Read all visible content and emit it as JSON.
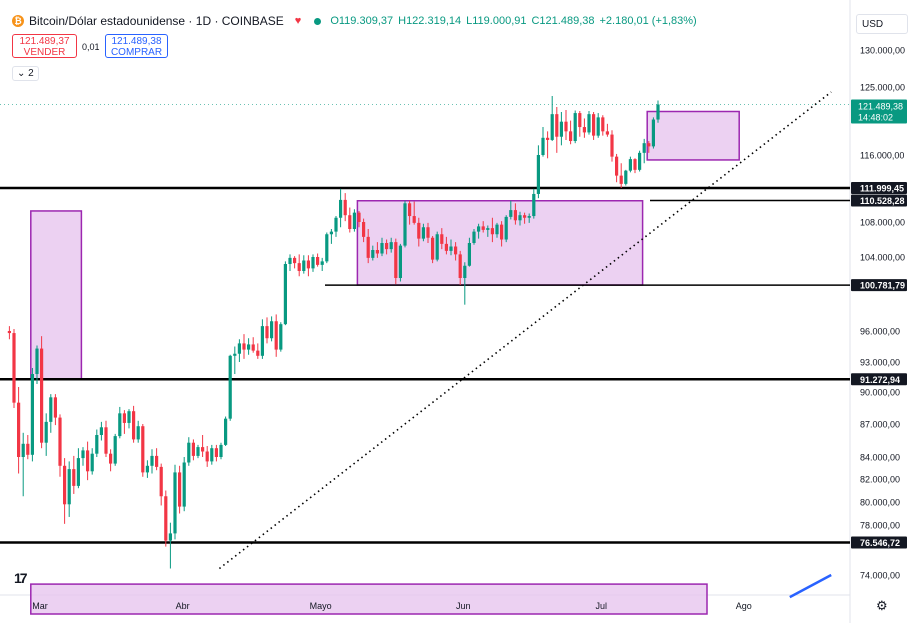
{
  "header": {
    "symbol": "Bitcoin/Dólar estadounidense · 1D · COINBASE",
    "open": "O119.309,37",
    "high": "H122.319,14",
    "low": "L119.000,91",
    "close": "C121.489,38",
    "change": "+2.180,01 (+1,83%)",
    "icon": "bitcoin-icon"
  },
  "trade": {
    "sell_price": "121.489,37",
    "sell_label": "VENDER",
    "spread": "0,01",
    "buy_price": "121.489,38",
    "buy_label": "COMPRAR"
  },
  "indicators_count": "⌄ 2",
  "currency": "USD",
  "colors": {
    "up": "#089981",
    "down": "#f23645",
    "zone_fill": "#e7c6ef",
    "zone_border": "#9c27b0",
    "trend_blue": "#2962ff"
  },
  "chart_data": {
    "type": "candlestick",
    "y_ticks": [
      "130.000,00",
      "125.000,00",
      "120.000,00",
      "116.000,00",
      "112.000,00",
      "108.000,00",
      "104.000,00",
      "100.000,00",
      "96.000,00",
      "93.000,00",
      "90.000,00",
      "87.000,00",
      "84.000,00",
      "82.000,00",
      "80.000,00",
      "78.000,00",
      "76.000,00",
      "74.000,00"
    ],
    "y_tick_values": [
      130000,
      125000,
      120000,
      116000,
      112000,
      108000,
      104000,
      100000,
      96000,
      93000,
      90000,
      87000,
      84000,
      82000,
      80000,
      78000,
      76000,
      74000
    ],
    "hidden_ticks": [
      "120.000,00",
      "112.000,00",
      "100.000,00",
      "76.000,00"
    ],
    "x_labels": [
      "Mar",
      "Abr",
      "Mayo",
      "Jun",
      "Jul",
      "Ago"
    ],
    "x_label_dates": [
      "2025-03-01",
      "2025-04-01",
      "2025-05-01",
      "2025-06-01",
      "2025-07-01",
      "2025-08-01"
    ],
    "horizontal_levels": [
      {
        "value": 111999.45,
        "label": "111.999,45"
      },
      {
        "value": 110528.28,
        "label": "110.528,28"
      },
      {
        "value": 100781.79,
        "label": "100.781,79"
      },
      {
        "value": 91272.94,
        "label": "91.272,94"
      },
      {
        "value": 76546.72,
        "label": "76.546,72"
      }
    ],
    "current_price": {
      "label": "121.489,38",
      "countdown": "14:48:02",
      "value": 121489.38
    },
    "zones": [
      {
        "start": "2025-02-27",
        "end": "2025-03-10",
        "top": 109300,
        "bottom": 91300
      },
      {
        "start": "2025-05-09",
        "end": "2025-07-10",
        "top": 110500,
        "bottom": 100800
      },
      {
        "start": "2025-07-11",
        "end": "2025-07-31",
        "top": 120100,
        "bottom": 115400
      },
      {
        "start": "2025-02-27",
        "end": "2025-07-24",
        "top": 73300,
        "bottom": 71000
      }
    ],
    "trendline": {
      "start_date": "2025-04-09",
      "start_value": 74500,
      "end_date": "2025-08-20",
      "end_value": 124000
    },
    "lower_blue_line": {
      "start_date": "2025-08-11",
      "start_value": 72300,
      "end_date": "2025-08-20",
      "end_value": 74000
    },
    "candles": [
      [
        96000,
        96500,
        95200,
        95800
      ],
      [
        95800,
        96200,
        88500,
        89000
      ],
      [
        89000,
        90500,
        82500,
        84000
      ],
      [
        84000,
        86200,
        80500,
        85200
      ],
      [
        85200,
        86000,
        83800,
        84200
      ],
      [
        84200,
        92400,
        83600,
        91800
      ],
      [
        91800,
        94600,
        90800,
        94300
      ],
      [
        94300,
        95500,
        84800,
        85300
      ],
      [
        85300,
        88000,
        84100,
        87200
      ],
      [
        87200,
        89800,
        86200,
        89500
      ],
      [
        89500,
        89800,
        86900,
        87600
      ],
      [
        87600,
        87900,
        82200,
        83200
      ],
      [
        83200,
        83900,
        78100,
        79800
      ],
      [
        79800,
        83600,
        78700,
        82900
      ],
      [
        82900,
        84100,
        80700,
        81400
      ],
      [
        81400,
        84800,
        81200,
        83900
      ],
      [
        83900,
        84900,
        83200,
        84600
      ],
      [
        84600,
        85400,
        81900,
        82700
      ],
      [
        82700,
        84800,
        82400,
        84300
      ],
      [
        84300,
        86500,
        84000,
        86000
      ],
      [
        86000,
        87200,
        85500,
        86700
      ],
      [
        86700,
        87300,
        84000,
        84300
      ],
      [
        84300,
        84700,
        82700,
        83400
      ],
      [
        83400,
        86100,
        83200,
        85900
      ],
      [
        85900,
        88600,
        85700,
        88000
      ],
      [
        88000,
        88300,
        86100,
        87100
      ],
      [
        87100,
        88400,
        86600,
        88200
      ],
      [
        88200,
        88700,
        85300,
        85600
      ],
      [
        85600,
        87300,
        85300,
        86800
      ],
      [
        86800,
        87000,
        82200,
        82600
      ],
      [
        82600,
        83700,
        82100,
        83200
      ],
      [
        83200,
        84700,
        82500,
        84100
      ],
      [
        84100,
        84800,
        82800,
        83100
      ],
      [
        83100,
        83400,
        79700,
        80500
      ],
      [
        80500,
        81000,
        76200,
        76700
      ],
      [
        76700,
        78200,
        74500,
        77300
      ],
      [
        77300,
        83300,
        76800,
        82600
      ],
      [
        82600,
        83200,
        79000,
        79600
      ],
      [
        79600,
        84000,
        79200,
        83500
      ],
      [
        83500,
        85800,
        83200,
        85300
      ],
      [
        85300,
        85600,
        83700,
        84100
      ],
      [
        84100,
        85100,
        83900,
        84900
      ],
      [
        84900,
        86000,
        84000,
        84500
      ],
      [
        84500,
        85000,
        83100,
        83600
      ],
      [
        83600,
        85100,
        83300,
        84800
      ],
      [
        84800,
        85100,
        83600,
        84000
      ],
      [
        84000,
        85300,
        83800,
        85100
      ],
      [
        85100,
        87700,
        85000,
        87500
      ],
      [
        87500,
        93700,
        87300,
        93600
      ],
      [
        93600,
        94500,
        91800,
        93800
      ],
      [
        93800,
        95200,
        93000,
        94800
      ],
      [
        94800,
        95700,
        93300,
        94200
      ],
      [
        94200,
        95300,
        93700,
        94700
      ],
      [
        94700,
        95400,
        93900,
        94100
      ],
      [
        94100,
        94800,
        93300,
        93600
      ],
      [
        93600,
        97200,
        93300,
        96500
      ],
      [
        96500,
        97400,
        94800,
        95300
      ],
      [
        95300,
        97500,
        95000,
        97000
      ],
      [
        97000,
        97700,
        93500,
        94200
      ],
      [
        94200,
        96900,
        94000,
        96700
      ],
      [
        96700,
        103500,
        96600,
        103200
      ],
      [
        103200,
        104300,
        102400,
        103900
      ],
      [
        103900,
        104100,
        102700,
        103300
      ],
      [
        103300,
        104300,
        101800,
        102400
      ],
      [
        102400,
        104200,
        102100,
        103600
      ],
      [
        103600,
        104200,
        101800,
        102700
      ],
      [
        102700,
        104300,
        102300,
        104000
      ],
      [
        104000,
        104400,
        102900,
        103100
      ],
      [
        103100,
        103900,
        102400,
        103500
      ],
      [
        103500,
        106800,
        103300,
        106600
      ],
      [
        106600,
        107200,
        105500,
        106900
      ],
      [
        106900,
        108700,
        106300,
        108500
      ],
      [
        108500,
        111900,
        107400,
        110600
      ],
      [
        110600,
        111400,
        108100,
        108800
      ],
      [
        108800,
        109700,
        106800,
        107200
      ],
      [
        107200,
        109500,
        106900,
        109100
      ],
      [
        109100,
        109300,
        107400,
        108000
      ],
      [
        108000,
        108400,
        105700,
        106300
      ],
      [
        106300,
        107200,
        103300,
        103900
      ],
      [
        103900,
        105300,
        103600,
        104800
      ],
      [
        104800,
        105700,
        103900,
        104400
      ],
      [
        104400,
        106200,
        104100,
        105600
      ],
      [
        105600,
        106000,
        104300,
        104900
      ],
      [
        104900,
        106200,
        104500,
        105700
      ],
      [
        105700,
        106100,
        100900,
        101600
      ],
      [
        101600,
        105500,
        101200,
        105300
      ],
      [
        105300,
        110500,
        105100,
        110200
      ],
      [
        110200,
        110500,
        107700,
        108700
      ],
      [
        108700,
        110400,
        107700,
        107900
      ],
      [
        107900,
        108500,
        105200,
        106100
      ],
      [
        106100,
        107800,
        105800,
        107400
      ],
      [
        107400,
        107900,
        105600,
        106200
      ],
      [
        106200,
        106400,
        103300,
        103700
      ],
      [
        103700,
        106900,
        103500,
        106600
      ],
      [
        106600,
        107300,
        104900,
        105500
      ],
      [
        105500,
        106300,
        104300,
        104700
      ],
      [
        104700,
        106000,
        104200,
        105200
      ],
      [
        105200,
        105700,
        103600,
        104300
      ],
      [
        104300,
        104700,
        100800,
        101600
      ],
      [
        101600,
        103400,
        98700,
        103000
      ],
      [
        103000,
        106200,
        102900,
        105600
      ],
      [
        105600,
        107200,
        105400,
        106900
      ],
      [
        106900,
        107800,
        106100,
        107500
      ],
      [
        107500,
        108100,
        106800,
        107100
      ],
      [
        107100,
        107600,
        106300,
        107300
      ],
      [
        107300,
        108500,
        105700,
        106600
      ],
      [
        106600,
        107900,
        106200,
        107700
      ],
      [
        107700,
        108100,
        105200,
        106000
      ],
      [
        106000,
        108800,
        105700,
        108600
      ],
      [
        108600,
        110500,
        108300,
        109400
      ],
      [
        109400,
        110200,
        107700,
        108200
      ],
      [
        108200,
        109200,
        107600,
        108800
      ],
      [
        108800,
        109100,
        107800,
        108500
      ],
      [
        108500,
        109000,
        107900,
        108700
      ],
      [
        108700,
        111900,
        108400,
        111300
      ],
      [
        111300,
        116900,
        110800,
        116000
      ],
      [
        116000,
        118600,
        115800,
        117600
      ],
      [
        117600,
        118200,
        115600,
        117400
      ],
      [
        117400,
        123200,
        117300,
        119800
      ],
      [
        119800,
        121000,
        116200,
        117700
      ],
      [
        117700,
        120000,
        116900,
        119100
      ],
      [
        119100,
        120400,
        117400,
        118200
      ],
      [
        118200,
        119200,
        117000,
        117300
      ],
      [
        117300,
        120300,
        117100,
        119900
      ],
      [
        119900,
        120200,
        117700,
        118600
      ],
      [
        118600,
        119400,
        117600,
        118100
      ],
      [
        118100,
        120200,
        117900,
        119800
      ],
      [
        119800,
        120000,
        117400,
        117800
      ],
      [
        117800,
        119900,
        117600,
        119500
      ],
      [
        119500,
        119700,
        117800,
        118200
      ],
      [
        118200,
        118900,
        117700,
        117900
      ],
      [
        117900,
        118300,
        115200,
        115800
      ],
      [
        115800,
        116100,
        112700,
        113500
      ],
      [
        113500,
        115000,
        112000,
        112500
      ],
      [
        112500,
        114200,
        112300,
        114100
      ],
      [
        114100,
        115800,
        113900,
        115500
      ],
      [
        115500,
        115600,
        113800,
        114200
      ],
      [
        114200,
        116400,
        114000,
        116200
      ],
      [
        116200,
        117500,
        115000,
        117100
      ],
      [
        117100,
        117300,
        116200,
        116800
      ],
      [
        116800,
        119500,
        116600,
        119300
      ],
      [
        119300,
        122300,
        119000,
        121500
      ]
    ]
  }
}
